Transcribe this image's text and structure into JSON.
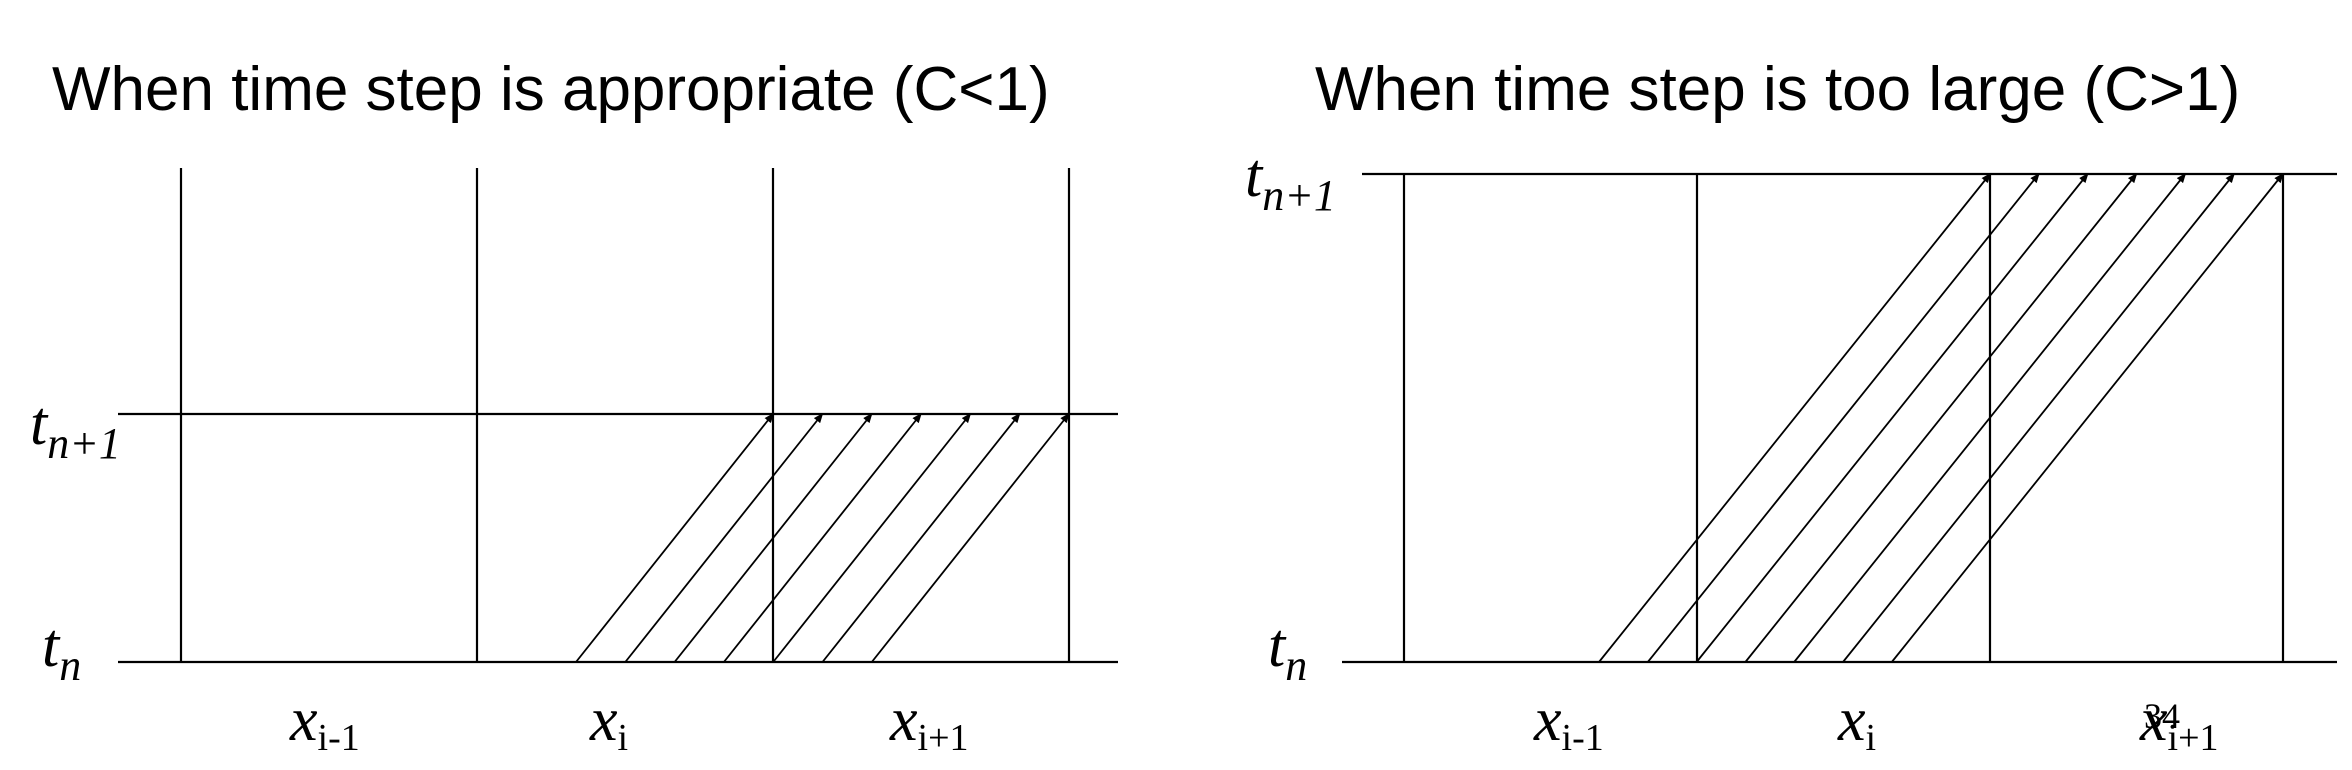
{
  "panels": [
    {
      "title": "When time step is appropriate (C<1)",
      "time_labels": {
        "upper": {
          "base": "t",
          "sub": "n+1"
        },
        "lower": {
          "base": "t",
          "sub": "n"
        }
      },
      "x_labels": [
        {
          "base": "x",
          "sub": "i-1"
        },
        {
          "base": "x",
          "sub": "i"
        },
        {
          "base": "x",
          "sub": "i+1"
        }
      ],
      "characteristic_count": 7
    },
    {
      "title": "When time step is too large (C>1)",
      "time_labels": {
        "upper": {
          "base": "t",
          "sub": "n+1"
        },
        "lower": {
          "base": "t",
          "sub": "n"
        }
      },
      "x_labels": [
        {
          "base": "x",
          "sub": "i-1"
        },
        {
          "base": "x",
          "sub": "i"
        },
        {
          "base": "x",
          "sub": "i+1"
        }
      ],
      "characteristic_count": 7
    }
  ],
  "page_number": "34"
}
